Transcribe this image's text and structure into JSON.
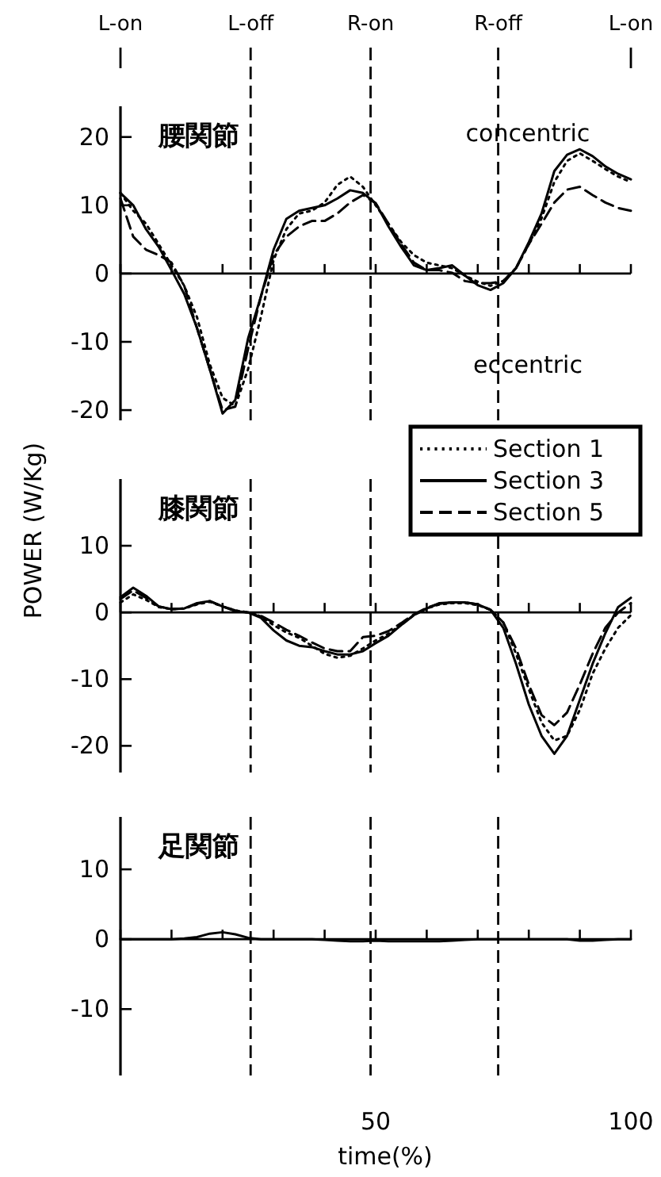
{
  "chart_data": [
    {
      "type": "line",
      "title": "腰関節",
      "x": [
        0,
        2.5,
        5,
        7.5,
        10,
        12.5,
        15,
        17.5,
        20,
        22.5,
        25,
        27.5,
        30,
        32.5,
        35,
        37.5,
        40,
        42.5,
        45,
        47.5,
        50,
        52.5,
        55,
        57.5,
        60,
        62.5,
        65,
        67.5,
        70,
        72.5,
        75,
        77.5,
        80,
        82.5,
        85,
        87.5,
        90,
        92.5,
        95,
        97.5,
        100
      ],
      "series": [
        {
          "color": "#000000",
          "line_style": "dotted",
          "values": [
            11.8,
            9.2,
            7.3,
            4.3,
            1.2,
            -1.8,
            -6.4,
            -13.3,
            -18.2,
            -19.4,
            -14,
            -6.4,
            2,
            6.5,
            8.8,
            9.2,
            10.4,
            13,
            14.2,
            12.7,
            10,
            7.3,
            4.6,
            2.7,
            1.6,
            1.2,
            0.8,
            -0.3,
            -1.2,
            -1.8,
            -1.1,
            0.8,
            4.3,
            8.1,
            13.4,
            16.5,
            17.6,
            16.5,
            15.3,
            14.2,
            13.4
          ]
        },
        {
          "color": "#000000",
          "line_style": "solid",
          "values": [
            11.8,
            10,
            6.5,
            3.9,
            0.5,
            -3,
            -8,
            -14,
            -20.5,
            -18.5,
            -9.5,
            -3.4,
            3.5,
            8,
            9.2,
            9.6,
            10,
            11,
            12.2,
            11.8,
            10.3,
            6.9,
            3.9,
            1.2,
            0.5,
            0.8,
            1.2,
            -0.3,
            -1.7,
            -2.4,
            -1.4,
            0.8,
            4.6,
            8.8,
            15,
            17.4,
            18.2,
            17.2,
            15.7,
            14.6,
            13.8
          ]
        },
        {
          "color": "#000000",
          "line_style": "dashed",
          "values": [
            11,
            5.4,
            3.5,
            2.7,
            1.6,
            -1.8,
            -8,
            -14,
            -20,
            -19.5,
            -11,
            -3.4,
            2.7,
            5.4,
            6.9,
            7.7,
            7.7,
            8.8,
            10.4,
            11.5,
            10.3,
            7.3,
            4.3,
            1.6,
            0.5,
            0.5,
            0.1,
            -1.1,
            -1.4,
            -1.4,
            -1.1,
            0.8,
            4.3,
            7.3,
            10.4,
            12.3,
            12.7,
            11.5,
            10.4,
            9.6,
            9.2
          ]
        }
      ],
      "xlim": [
        0,
        100
      ],
      "xticks": [
        {
          "value": 0,
          "label": null
        },
        {
          "value": 10,
          "label": null
        },
        {
          "value": 20,
          "label": null
        },
        {
          "value": 30,
          "label": null
        },
        {
          "value": 40,
          "label": null
        },
        {
          "value": 50,
          "label": null
        },
        {
          "value": 60,
          "label": null
        },
        {
          "value": 70,
          "label": null
        },
        {
          "value": 80,
          "label": null
        },
        {
          "value": 90,
          "label": null
        },
        {
          "value": 100,
          "label": null
        }
      ],
      "ylim": [
        -21.5,
        24.5
      ],
      "yticks": [
        -20,
        -10,
        0,
        10,
        20
      ],
      "ref_lines": [
        {
          "axis": "x",
          "value": 0,
          "label": "L-on"
        },
        {
          "axis": "x",
          "value": 25.5,
          "label": "L-off",
          "line_style": "dashed"
        },
        {
          "axis": "x",
          "value": 49,
          "label": "R-on",
          "line_style": "dashed"
        },
        {
          "axis": "x",
          "value": 74,
          "label": "R-off",
          "line_style": "dashed"
        },
        {
          "axis": "x",
          "value": 100,
          "label": "L-on"
        }
      ],
      "annotations": [
        "concentric",
        "eccentric"
      ],
      "tick_labels": "y"
    },
    {
      "type": "line",
      "title": "膝関節",
      "ylabel": "POWER (W/Kg)",
      "legend": "top right",
      "x": [
        0,
        2.5,
        5,
        7.5,
        10,
        12.5,
        15,
        17.5,
        20,
        22.5,
        25,
        27.5,
        30,
        32.5,
        35,
        37.5,
        40,
        42.5,
        45,
        47.5,
        50,
        52.5,
        55,
        57.5,
        60,
        62.5,
        65,
        67.5,
        70,
        72.5,
        75,
        77.5,
        80,
        82.5,
        85,
        87.5,
        90,
        92.5,
        95,
        97.5,
        100
      ],
      "series": [
        {
          "name": "Section 1",
          "color": "#000000",
          "line_style": "dotted",
          "values": [
            1.5,
            2.7,
            1.9,
            0.8,
            0.5,
            0.6,
            1.2,
            1.6,
            0.9,
            0.3,
            0,
            -0.6,
            -1.9,
            -3,
            -3.8,
            -5,
            -6.2,
            -6.8,
            -6.5,
            -5.4,
            -4.2,
            -3.2,
            -1.8,
            -0.4,
            0.6,
            1.2,
            1.4,
            1.4,
            1.1,
            0.4,
            -1.5,
            -6.2,
            -11.5,
            -16.5,
            -19.2,
            -18.5,
            -14.6,
            -9.2,
            -5.4,
            -2.3,
            -0.4
          ]
        },
        {
          "name": "Section 3",
          "color": "#000000",
          "line_style": "solid",
          "values": [
            2.3,
            3.7,
            2.5,
            0.9,
            0.5,
            0.6,
            1.4,
            1.7,
            0.9,
            0.2,
            0,
            -0.8,
            -2.7,
            -4.2,
            -5,
            -5.2,
            -5.8,
            -6.3,
            -6.3,
            -5.8,
            -4.6,
            -3.5,
            -1.9,
            -0.4,
            0.6,
            1.4,
            1.5,
            1.5,
            1.2,
            0.4,
            -2.3,
            -7.7,
            -13.8,
            -18.5,
            -21.2,
            -18.5,
            -13.1,
            -7.7,
            -3.1,
            0.8,
            2.2
          ]
        },
        {
          "name": "Section 5",
          "color": "#000000",
          "line_style": "dashed",
          "values": [
            2,
            3.3,
            2.2,
            0.9,
            0.5,
            0.6,
            1.3,
            1.7,
            0.9,
            0.3,
            0,
            -0.5,
            -1.5,
            -2.6,
            -3.5,
            -4.5,
            -5.4,
            -5.8,
            -5.8,
            -3.7,
            -3.5,
            -2.8,
            -1.6,
            -0.3,
            0.7,
            1.3,
            1.5,
            1.5,
            1.2,
            0.4,
            -1.5,
            -5.4,
            -10.8,
            -15.4,
            -16.9,
            -15,
            -10.8,
            -6.2,
            -2.3,
            0,
            1.4
          ]
        }
      ],
      "xlim": [
        0,
        100
      ],
      "xticks": [
        {
          "value": 0,
          "label": null
        },
        {
          "value": 10,
          "label": null
        },
        {
          "value": 20,
          "label": null
        },
        {
          "value": 30,
          "label": null
        },
        {
          "value": 40,
          "label": null
        },
        {
          "value": 50,
          "label": null
        },
        {
          "value": 60,
          "label": null
        },
        {
          "value": 70,
          "label": null
        },
        {
          "value": 80,
          "label": null
        },
        {
          "value": 90,
          "label": null
        },
        {
          "value": 100,
          "label": null
        }
      ],
      "ylim": [
        -24,
        20
      ],
      "yticks": [
        -20,
        -10,
        0,
        10
      ],
      "ref_lines": [
        {
          "axis": "x",
          "value": 25.5,
          "line_style": "dashed"
        },
        {
          "axis": "x",
          "value": 49,
          "line_style": "dashed"
        },
        {
          "axis": "x",
          "value": 74,
          "line_style": "dashed"
        }
      ],
      "tick_labels": "y"
    },
    {
      "type": "line",
      "title": "足関節",
      "xlabel": "time(%)",
      "x": [
        0,
        2.5,
        5,
        7.5,
        10,
        12.5,
        15,
        17.5,
        20,
        22.5,
        25,
        27.5,
        30,
        32.5,
        35,
        37.5,
        40,
        42.5,
        45,
        47.5,
        50,
        52.5,
        55,
        57.5,
        60,
        62.5,
        65,
        67.5,
        70,
        72.5,
        75,
        77.5,
        80,
        82.5,
        85,
        87.5,
        90,
        92.5,
        95,
        97.5,
        100
      ],
      "series": [
        {
          "color": "#000000",
          "line_style": "solid",
          "values": [
            0,
            0,
            0,
            0,
            0,
            0.1,
            0.3,
            0.8,
            1,
            0.7,
            0.2,
            0,
            0,
            0,
            0,
            0,
            -0.1,
            -0.2,
            -0.3,
            -0.3,
            -0.2,
            -0.3,
            -0.3,
            -0.3,
            -0.3,
            -0.3,
            -0.2,
            -0.1,
            0,
            0,
            0,
            0,
            0,
            0,
            0,
            0,
            -0.2,
            -0.2,
            -0.1,
            0,
            0
          ]
        }
      ],
      "xlim": [
        0,
        100
      ],
      "xticks": [
        {
          "value": 0,
          "label": null
        },
        {
          "value": 10,
          "label": null
        },
        {
          "value": 20,
          "label": null
        },
        {
          "value": 30,
          "label": null
        },
        {
          "value": 40,
          "label": null
        },
        {
          "value": 50,
          "label": "50"
        },
        {
          "value": 60,
          "label": null
        },
        {
          "value": 70,
          "label": null
        },
        {
          "value": 80,
          "label": null
        },
        {
          "value": 90,
          "label": null
        },
        {
          "value": 100,
          "label": "100"
        }
      ],
      "ylim": [
        -19.5,
        17.5
      ],
      "yticks": [
        -10,
        0,
        10
      ],
      "ref_lines": [
        {
          "axis": "x",
          "value": 25.5,
          "line_style": "dashed"
        },
        {
          "axis": "x",
          "value": 49,
          "line_style": "dashed"
        },
        {
          "axis": "x",
          "value": 74,
          "line_style": "dashed"
        }
      ]
    }
  ]
}
